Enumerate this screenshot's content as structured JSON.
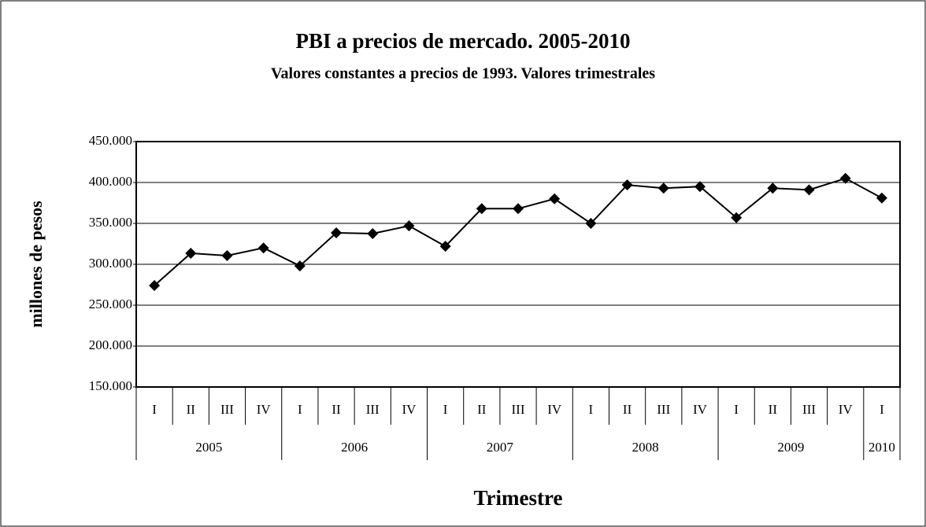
{
  "chart_data": {
    "type": "line",
    "title": "PBI a precios de mercado. 2005-2010",
    "subtitle": "Valores constantes a precios de 1993. Valores trimestrales",
    "y_label": "millones de pesos",
    "x_label": "Trimestre",
    "category_groups": [
      {
        "name": "2005",
        "categories": [
          "I",
          "II",
          "III",
          "IV"
        ]
      },
      {
        "name": "2006",
        "categories": [
          "I",
          "II",
          "III",
          "IV"
        ]
      },
      {
        "name": "2007",
        "categories": [
          "I",
          "II",
          "III",
          "IV"
        ]
      },
      {
        "name": "2008",
        "categories": [
          "I",
          "II",
          "III",
          "IV"
        ]
      },
      {
        "name": "2009",
        "categories": [
          "I",
          "II",
          "III",
          "IV"
        ]
      },
      {
        "name": "2010",
        "categories": [
          "I"
        ]
      }
    ],
    "values": [
      274000,
      313500,
      310600,
      320000,
      298000,
      338500,
      337500,
      347000,
      322000,
      368000,
      368000,
      380000,
      350000,
      397000,
      393000,
      395000,
      357000,
      393000,
      391000,
      405000,
      381000
    ],
    "color": "#000000",
    "ylim": [
      150000,
      450000
    ],
    "yticks": [
      {
        "value": 150000,
        "label": "150.000"
      },
      {
        "value": 200000,
        "label": "200.000"
      },
      {
        "value": 250000,
        "label": "250.000"
      },
      {
        "value": 300000,
        "label": "300.000"
      },
      {
        "value": 350000,
        "label": "350.000"
      },
      {
        "value": 400000,
        "label": "400.000"
      },
      {
        "value": 450000,
        "label": "450.000"
      }
    ],
    "grid": true
  }
}
